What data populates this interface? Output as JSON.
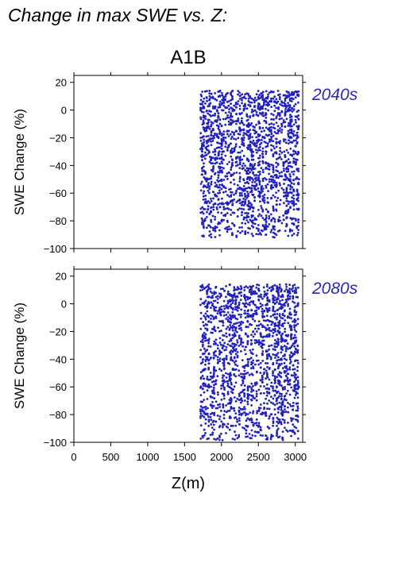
{
  "title": "Change in max SWE vs. Z:",
  "colors": {
    "points": "#2020c0",
    "period_label": "#2a2ab8",
    "axis": "#000000"
  },
  "chart_data": [
    {
      "type": "scatter",
      "title": "A1B",
      "period": "2040s",
      "xlabel": "",
      "ylabel": "SWE Change (%)",
      "xlim": [
        0,
        3100
      ],
      "ylim": [
        -100,
        25
      ],
      "x_ticks": [
        0,
        500,
        1000,
        1500,
        2000,
        2500,
        3000
      ],
      "y_ticks": [
        -100,
        -80,
        -60,
        -40,
        -20,
        0,
        20
      ],
      "y_tick_labels": [
        "−100",
        "−80",
        "−60",
        "−40",
        "−20",
        "0",
        "20"
      ],
      "x_tick_labels_shown": false,
      "x_range_of_points": [
        1720,
        3060
      ],
      "y_range_of_points": [
        -92,
        14
      ],
      "point_density_note": "dense vertical bands of points between 1720 m and 3060 m",
      "series": [
        {
          "values_sample": [
            [
              1730,
              10
            ],
            [
              1740,
              -30
            ],
            [
              1760,
              -85
            ],
            [
              1800,
              -50
            ],
            [
              1850,
              5
            ],
            [
              1900,
              -20
            ],
            [
              1980,
              -70
            ],
            [
              2050,
              8
            ],
            [
              2100,
              -45
            ],
            [
              2150,
              -90
            ],
            [
              2200,
              -10
            ],
            [
              2250,
              -60
            ],
            [
              2300,
              9
            ],
            [
              2350,
              -35
            ],
            [
              2400,
              -80
            ],
            [
              2450,
              -25
            ],
            [
              2500,
              8
            ],
            [
              2550,
              -55
            ],
            [
              2600,
              -90
            ],
            [
              2650,
              -15
            ],
            [
              2700,
              -40
            ],
            [
              2750,
              5
            ],
            [
              2800,
              -65
            ],
            [
              2850,
              -30
            ],
            [
              2900,
              0
            ],
            [
              2950,
              -20
            ],
            [
              3050,
              -50
            ]
          ]
        }
      ]
    },
    {
      "type": "scatter",
      "title": "",
      "period": "2080s",
      "xlabel": "Z(m)",
      "ylabel": "SWE Change (%)",
      "xlim": [
        0,
        3100
      ],
      "ylim": [
        -100,
        25
      ],
      "x_ticks": [
        0,
        500,
        1000,
        1500,
        2000,
        2500,
        3000
      ],
      "x_tick_labels": [
        "0",
        "500",
        "1000",
        "1500",
        "2000",
        "2500",
        "3000"
      ],
      "y_ticks": [
        -100,
        -80,
        -60,
        -40,
        -20,
        0,
        20
      ],
      "y_tick_labels": [
        "−100",
        "−80",
        "−60",
        "−40",
        "−20",
        "0",
        "20"
      ],
      "x_range_of_points": [
        1720,
        3060
      ],
      "y_range_of_points": [
        -99,
        14
      ],
      "point_density_note": "dense vertical bands of points between 1720 m and 3060 m",
      "series": [
        {
          "values_sample": [
            [
              1730,
              12
            ],
            [
              1750,
              -40
            ],
            [
              1770,
              -95
            ],
            [
              1820,
              -60
            ],
            [
              1880,
              0
            ],
            [
              1950,
              -30
            ],
            [
              2000,
              -85
            ],
            [
              2060,
              5
            ],
            [
              2120,
              -50
            ],
            [
              2180,
              -98
            ],
            [
              2220,
              12
            ],
            [
              2280,
              -70
            ],
            [
              2330,
              5
            ],
            [
              2380,
              -40
            ],
            [
              2420,
              -95
            ],
            [
              2480,
              -20
            ],
            [
              2530,
              5
            ],
            [
              2580,
              -75
            ],
            [
              2620,
              -98
            ],
            [
              2680,
              -30
            ],
            [
              2720,
              -55
            ],
            [
              2780,
              0
            ],
            [
              2830,
              -80
            ],
            [
              2880,
              -45
            ],
            [
              2920,
              -10
            ],
            [
              2960,
              -30
            ],
            [
              3050,
              -60
            ]
          ]
        }
      ]
    }
  ]
}
